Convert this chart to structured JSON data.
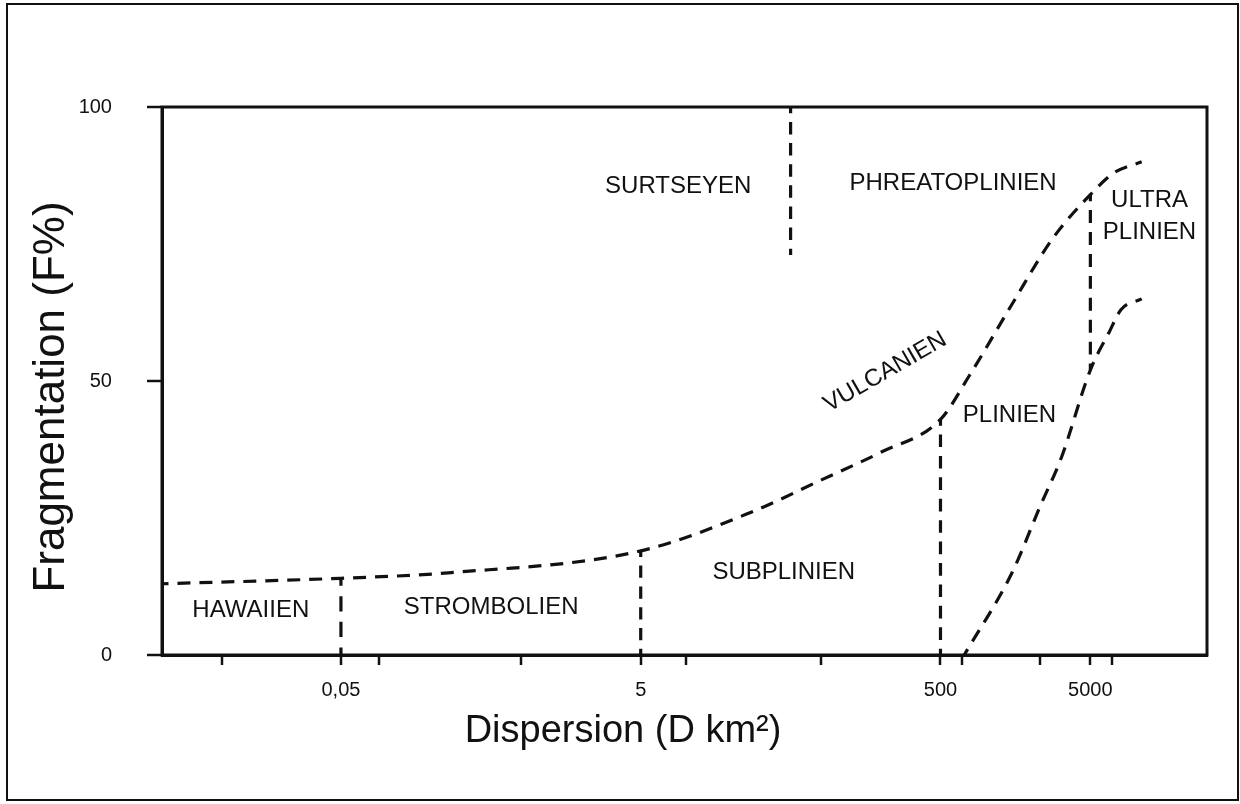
{
  "chart_data": {
    "type": "line",
    "xlabel": "Dispersion (D km²)",
    "ylabel": "Fragmentation (F%)",
    "log": "x",
    "marker": "none",
    "line_style": "dashed",
    "xlim": [
      0.0032,
      30000
    ],
    "ylim": [
      0,
      100
    ],
    "xticks": [
      {
        "value": 0.008,
        "label": null
      },
      {
        "value": 0.05,
        "label": "0,05"
      },
      {
        "value": 0.09,
        "label": null
      },
      {
        "value": 0.8,
        "label": null
      },
      5,
      {
        "value": 10,
        "label": null
      },
      {
        "value": 80,
        "label": null
      },
      500,
      {
        "value": 700,
        "label": null
      },
      {
        "value": 2300,
        "label": null
      },
      5000,
      {
        "value": 7000,
        "label": null
      }
    ],
    "yticks": [
      0,
      50,
      100
    ],
    "series": [
      {
        "color": "#111111",
        "x": [
          0.0032,
          0.05,
          0.26,
          5,
          27,
          81,
          200,
          500,
          780,
          1500,
          2800,
          5000,
          7200,
          11000
        ],
        "values": [
          13,
          14,
          15,
          19,
          26,
          32,
          37,
          43,
          51,
          64,
          76,
          84,
          88,
          90
        ]
      },
      {
        "color": "#111111",
        "x": [
          720,
          1500,
          2300,
          3200,
          5000,
          6700,
          8000,
          11000
        ],
        "values": [
          0,
          15,
          27,
          36,
          52,
          59,
          63,
          65
        ]
      },
      {
        "color": "#111111",
        "x": [
          0.05,
          0.05
        ],
        "values": [
          0,
          14
        ]
      },
      {
        "color": "#111111",
        "x": [
          5,
          5
        ],
        "values": [
          0,
          19
        ]
      },
      {
        "color": "#111111",
        "x": [
          500,
          500
        ],
        "values": [
          0,
          43
        ]
      },
      {
        "color": "#111111",
        "x": [
          5000,
          5000
        ],
        "values": [
          52,
          84
        ]
      },
      {
        "color": "#111111",
        "x": [
          50,
          50
        ],
        "values": [
          100,
          73
        ]
      }
    ],
    "annotations": [
      "SURTSEYEN",
      "PHREATOPLINIEN",
      "ULTRA\nPLINIEN",
      "VULCANIEN",
      "PLINIEN",
      "SUBPLINIEN",
      "HAWAIIEN",
      "STROMBOLIEN"
    ]
  }
}
